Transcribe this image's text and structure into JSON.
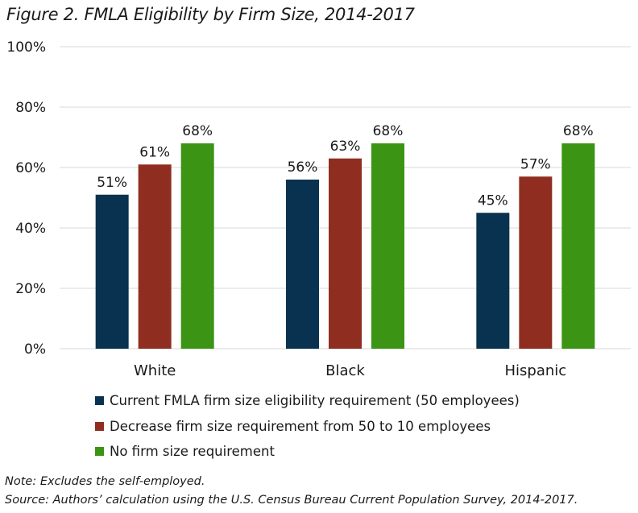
{
  "figure": {
    "title": "Figure 2. FMLA Eligibility by Firm Size, 2014-2017",
    "note": "Note: Excludes the self-employed.",
    "source": "Source: Authors’ calculation using the U.S. Census Bureau Current Population Survey, 2014-2017."
  },
  "chart_data": {
    "type": "bar",
    "title": "Figure 2. FMLA Eligibility by Firm Size, 2014-2017",
    "xlabel": "",
    "ylabel": "",
    "categories": [
      "White",
      "Black",
      "Hispanic"
    ],
    "series": [
      {
        "name": "Current FMLA firm size eligibility requirement (50 employees)",
        "values": [
          51,
          56,
          45
        ],
        "color": "#08324f"
      },
      {
        "name": "Decrease firm size requirement from 50 to 10 employees",
        "values": [
          61,
          63,
          57
        ],
        "color": "#8f2e20"
      },
      {
        "name": "No firm size requirement",
        "values": [
          68,
          68,
          68
        ],
        "color": "#3b9414"
      }
    ],
    "ylim": [
      0,
      100
    ],
    "yticks": [
      0,
      20,
      40,
      60,
      80,
      100
    ],
    "ytick_labels": [
      "0%",
      "20%",
      "40%",
      "60%",
      "80%",
      "100%"
    ],
    "data_labels": [
      [
        "51%",
        "56%",
        "45%"
      ],
      [
        "61%",
        "63%",
        "57%"
      ],
      [
        "68%",
        "68%",
        "68%"
      ]
    ],
    "grid": true,
    "gridline_color": "#d9d9d9",
    "legend_position": "bottom"
  }
}
